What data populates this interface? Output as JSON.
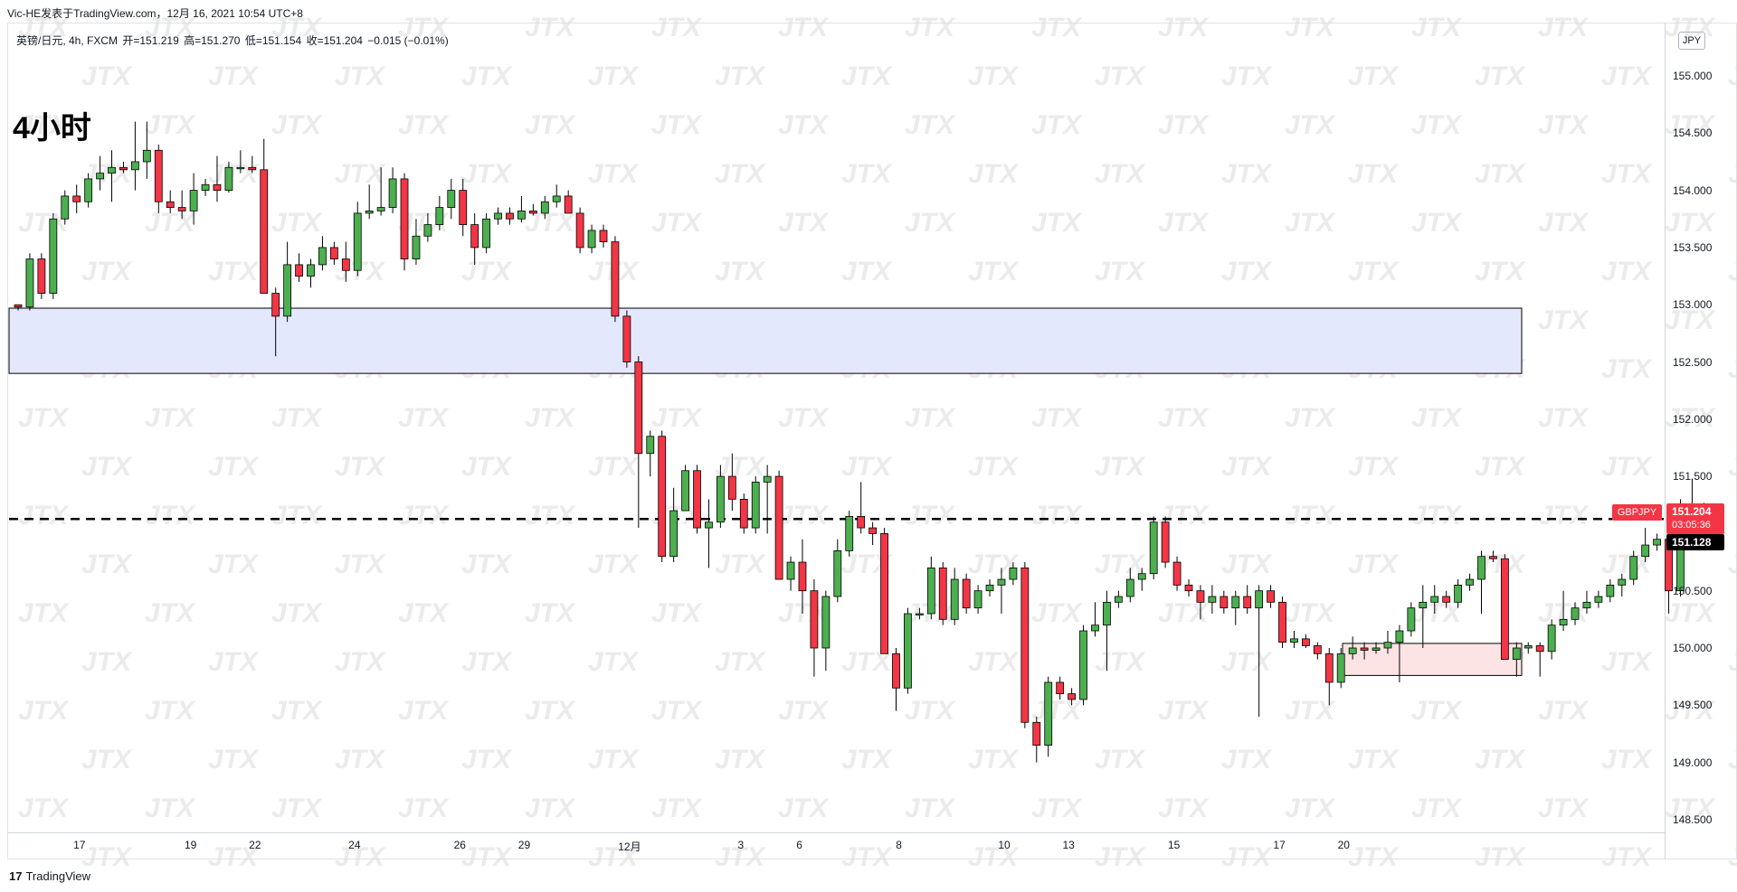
{
  "header": {
    "attribution": "Vic-HE发表于TradingView.com，12月 16, 2021 10:54 UTC+8",
    "legend": {
      "symbol": "英镑/日元, 4h, FXCM",
      "open": "开=151.219",
      "high": "高=151.270",
      "low": "低=151.154",
      "close": "收=151.204",
      "change": "−0.015 (−0.01%)"
    },
    "timeframe_label": "4小时"
  },
  "price_axis": {
    "currency": "JPY",
    "ticks": [
      "155.000",
      "154.500",
      "154.000",
      "153.500",
      "153.000",
      "152.500",
      "152.000",
      "151.500",
      "151.000",
      "150.500",
      "150.000",
      "149.500",
      "149.000",
      "148.500"
    ],
    "symbol_tag": "GBPJPY",
    "last_price": "151.204",
    "countdown": "03:05:36",
    "line_price": "151.128"
  },
  "time_axis": {
    "ticks": [
      "17",
      "19",
      "22",
      "24",
      "26",
      "29",
      "12月",
      "3",
      "6",
      "8",
      "10",
      "13",
      "15",
      "17",
      "20"
    ]
  },
  "footer": {
    "logo": "17",
    "brand": "TradingView"
  },
  "colors": {
    "up": "#4caf50",
    "down": "#f23645",
    "zone_supply": "#e3e8fd",
    "zone_demand": "#fde4e4",
    "watermark": "#dcdcdc"
  },
  "chart_data": {
    "type": "candlestick",
    "instrument": "英镑/日元",
    "interval": "4h",
    "ylim": [
      148.4,
      155.5
    ],
    "candles": [
      {
        "o": 153.0,
        "h": 153.0,
        "l": 152.95,
        "c": 152.98
      },
      {
        "o": 152.98,
        "h": 153.45,
        "l": 152.95,
        "c": 153.4
      },
      {
        "o": 153.4,
        "h": 153.45,
        "l": 153.05,
        "c": 153.1
      },
      {
        "o": 153.1,
        "h": 153.8,
        "l": 153.05,
        "c": 153.75
      },
      {
        "o": 153.75,
        "h": 154.0,
        "l": 153.7,
        "c": 153.95
      },
      {
        "o": 153.95,
        "h": 154.05,
        "l": 153.8,
        "c": 153.9
      },
      {
        "o": 153.9,
        "h": 154.15,
        "l": 153.85,
        "c": 154.1
      },
      {
        "o": 154.1,
        "h": 154.3,
        "l": 154.0,
        "c": 154.15
      },
      {
        "o": 154.15,
        "h": 154.35,
        "l": 153.9,
        "c": 154.2
      },
      {
        "o": 154.2,
        "h": 154.25,
        "l": 154.15,
        "c": 154.18
      },
      {
        "o": 154.18,
        "h": 154.6,
        "l": 154.0,
        "c": 154.25
      },
      {
        "o": 154.25,
        "h": 154.6,
        "l": 154.1,
        "c": 154.35
      },
      {
        "o": 154.35,
        "h": 154.4,
        "l": 153.8,
        "c": 153.9
      },
      {
        "o": 153.9,
        "h": 154.0,
        "l": 153.8,
        "c": 153.85
      },
      {
        "o": 153.85,
        "h": 154.0,
        "l": 153.75,
        "c": 153.82
      },
      {
        "o": 153.82,
        "h": 154.15,
        "l": 153.7,
        "c": 154.0
      },
      {
        "o": 154.0,
        "h": 154.1,
        "l": 153.95,
        "c": 154.05
      },
      {
        "o": 154.05,
        "h": 154.3,
        "l": 153.9,
        "c": 154.0
      },
      {
        "o": 154.0,
        "h": 154.25,
        "l": 153.98,
        "c": 154.2
      },
      {
        "o": 154.2,
        "h": 154.35,
        "l": 154.15,
        "c": 154.2
      },
      {
        "o": 154.2,
        "h": 154.3,
        "l": 154.15,
        "c": 154.18
      },
      {
        "o": 154.18,
        "h": 154.45,
        "l": 153.15,
        "c": 153.1
      },
      {
        "o": 153.1,
        "h": 153.15,
        "l": 152.55,
        "c": 152.9
      },
      {
        "o": 152.9,
        "h": 153.55,
        "l": 152.85,
        "c": 153.35
      },
      {
        "o": 153.35,
        "h": 153.45,
        "l": 153.2,
        "c": 153.25
      },
      {
        "o": 153.25,
        "h": 153.4,
        "l": 153.15,
        "c": 153.35
      },
      {
        "o": 153.35,
        "h": 153.6,
        "l": 153.3,
        "c": 153.5
      },
      {
        "o": 153.5,
        "h": 153.55,
        "l": 153.35,
        "c": 153.4
      },
      {
        "o": 153.4,
        "h": 153.55,
        "l": 153.2,
        "c": 153.3
      },
      {
        "o": 153.3,
        "h": 153.9,
        "l": 153.25,
        "c": 153.8
      },
      {
        "o": 153.8,
        "h": 154.05,
        "l": 153.75,
        "c": 153.82
      },
      {
        "o": 153.82,
        "h": 154.2,
        "l": 153.78,
        "c": 153.85
      },
      {
        "o": 153.85,
        "h": 154.2,
        "l": 153.8,
        "c": 154.1
      },
      {
        "o": 154.1,
        "h": 154.15,
        "l": 153.3,
        "c": 153.4
      },
      {
        "o": 153.4,
        "h": 153.75,
        "l": 153.35,
        "c": 153.6
      },
      {
        "o": 153.6,
        "h": 153.8,
        "l": 153.55,
        "c": 153.7
      },
      {
        "o": 153.7,
        "h": 153.95,
        "l": 153.65,
        "c": 153.85
      },
      {
        "o": 153.85,
        "h": 154.1,
        "l": 153.75,
        "c": 154.0
      },
      {
        "o": 154.0,
        "h": 154.1,
        "l": 153.6,
        "c": 153.7
      },
      {
        "o": 153.7,
        "h": 153.8,
        "l": 153.35,
        "c": 153.5
      },
      {
        "o": 153.5,
        "h": 153.8,
        "l": 153.45,
        "c": 153.75
      },
      {
        "o": 153.75,
        "h": 153.85,
        "l": 153.7,
        "c": 153.8
      },
      {
        "o": 153.8,
        "h": 153.85,
        "l": 153.7,
        "c": 153.75
      },
      {
        "o": 153.75,
        "h": 153.95,
        "l": 153.72,
        "c": 153.82
      },
      {
        "o": 153.82,
        "h": 153.88,
        "l": 153.78,
        "c": 153.8
      },
      {
        "o": 153.8,
        "h": 153.95,
        "l": 153.75,
        "c": 153.9
      },
      {
        "o": 153.9,
        "h": 154.05,
        "l": 153.85,
        "c": 153.95
      },
      {
        "o": 153.95,
        "h": 154.0,
        "l": 153.8,
        "c": 153.8
      },
      {
        "o": 153.8,
        "h": 153.85,
        "l": 153.45,
        "c": 153.5
      },
      {
        "o": 153.5,
        "h": 153.7,
        "l": 153.45,
        "c": 153.65
      },
      {
        "o": 153.65,
        "h": 153.7,
        "l": 153.5,
        "c": 153.55
      },
      {
        "o": 153.55,
        "h": 153.6,
        "l": 152.85,
        "c": 152.9
      },
      {
        "o": 152.9,
        "h": 152.95,
        "l": 152.45,
        "c": 152.5
      },
      {
        "o": 152.5,
        "h": 152.55,
        "l": 151.05,
        "c": 151.7
      },
      {
        "o": 151.7,
        "h": 151.9,
        "l": 151.5,
        "c": 151.85
      },
      {
        "o": 151.85,
        "h": 151.9,
        "l": 150.75,
        "c": 150.8
      },
      {
        "o": 150.8,
        "h": 151.4,
        "l": 150.75,
        "c": 151.2
      },
      {
        "o": 151.2,
        "h": 151.6,
        "l": 151.2,
        "c": 151.55
      },
      {
        "o": 151.55,
        "h": 151.6,
        "l": 151.0,
        "c": 151.05
      },
      {
        "o": 151.05,
        "h": 151.3,
        "l": 150.7,
        "c": 151.1
      },
      {
        "o": 151.1,
        "h": 151.6,
        "l": 151.05,
        "c": 151.5
      },
      {
        "o": 151.5,
        "h": 151.7,
        "l": 151.2,
        "c": 151.3
      },
      {
        "o": 151.3,
        "h": 151.35,
        "l": 151.0,
        "c": 151.05
      },
      {
        "o": 151.05,
        "h": 151.5,
        "l": 151.0,
        "c": 151.45
      },
      {
        "o": 151.45,
        "h": 151.6,
        "l": 151.0,
        "c": 151.5
      },
      {
        "o": 151.5,
        "h": 151.55,
        "l": 150.6,
        "c": 150.6
      },
      {
        "o": 150.6,
        "h": 150.8,
        "l": 150.5,
        "c": 150.75
      },
      {
        "o": 150.75,
        "h": 150.95,
        "l": 150.3,
        "c": 150.5
      },
      {
        "o": 150.5,
        "h": 150.6,
        "l": 149.75,
        "c": 150.0
      },
      {
        "o": 150.0,
        "h": 150.5,
        "l": 149.8,
        "c": 150.45
      },
      {
        "o": 150.45,
        "h": 150.95,
        "l": 150.4,
        "c": 150.85
      },
      {
        "o": 150.85,
        "h": 151.2,
        "l": 150.8,
        "c": 151.15
      },
      {
        "o": 151.15,
        "h": 151.45,
        "l": 151.0,
        "c": 151.05
      },
      {
        "o": 151.05,
        "h": 151.1,
        "l": 150.9,
        "c": 151.0
      },
      {
        "o": 151.0,
        "h": 151.05,
        "l": 149.95,
        "c": 149.95
      },
      {
        "o": 149.95,
        "h": 150.0,
        "l": 149.45,
        "c": 149.65
      },
      {
        "o": 149.65,
        "h": 150.35,
        "l": 149.6,
        "c": 150.3
      },
      {
        "o": 150.3,
        "h": 150.35,
        "l": 150.25,
        "c": 150.3
      },
      {
        "o": 150.3,
        "h": 150.8,
        "l": 150.25,
        "c": 150.7
      },
      {
        "o": 150.7,
        "h": 150.75,
        "l": 150.2,
        "c": 150.25
      },
      {
        "o": 150.25,
        "h": 150.7,
        "l": 150.2,
        "c": 150.6
      },
      {
        "o": 150.6,
        "h": 150.65,
        "l": 150.3,
        "c": 150.35
      },
      {
        "o": 150.35,
        "h": 150.55,
        "l": 150.3,
        "c": 150.5
      },
      {
        "o": 150.5,
        "h": 150.6,
        "l": 150.45,
        "c": 150.55
      },
      {
        "o": 150.55,
        "h": 150.7,
        "l": 150.3,
        "c": 150.6
      },
      {
        "o": 150.6,
        "h": 150.75,
        "l": 150.55,
        "c": 150.7
      },
      {
        "o": 150.7,
        "h": 150.75,
        "l": 149.3,
        "c": 149.35
      },
      {
        "o": 149.35,
        "h": 149.4,
        "l": 149.0,
        "c": 149.15
      },
      {
        "o": 149.15,
        "h": 149.75,
        "l": 149.05,
        "c": 149.7
      },
      {
        "o": 149.7,
        "h": 149.75,
        "l": 149.55,
        "c": 149.6
      },
      {
        "o": 149.6,
        "h": 149.65,
        "l": 149.5,
        "c": 149.55
      },
      {
        "o": 149.55,
        "h": 150.2,
        "l": 149.5,
        "c": 150.15
      },
      {
        "o": 150.15,
        "h": 150.4,
        "l": 150.1,
        "c": 150.2
      },
      {
        "o": 150.2,
        "h": 150.5,
        "l": 149.8,
        "c": 150.4
      },
      {
        "o": 150.4,
        "h": 150.5,
        "l": 150.35,
        "c": 150.45
      },
      {
        "o": 150.45,
        "h": 150.7,
        "l": 150.4,
        "c": 150.6
      },
      {
        "o": 150.6,
        "h": 150.7,
        "l": 150.5,
        "c": 150.65
      },
      {
        "o": 150.65,
        "h": 151.15,
        "l": 150.6,
        "c": 151.1
      },
      {
        "o": 151.1,
        "h": 151.15,
        "l": 150.7,
        "c": 150.75
      },
      {
        "o": 150.75,
        "h": 150.8,
        "l": 150.5,
        "c": 150.55
      },
      {
        "o": 150.55,
        "h": 150.6,
        "l": 150.45,
        "c": 150.5
      },
      {
        "o": 150.5,
        "h": 150.55,
        "l": 150.25,
        "c": 150.4
      },
      {
        "o": 150.4,
        "h": 150.55,
        "l": 150.3,
        "c": 150.45
      },
      {
        "o": 150.45,
        "h": 150.5,
        "l": 150.3,
        "c": 150.35
      },
      {
        "o": 150.35,
        "h": 150.5,
        "l": 150.2,
        "c": 150.45
      },
      {
        "o": 150.45,
        "h": 150.55,
        "l": 150.3,
        "c": 150.35
      },
      {
        "o": 150.35,
        "h": 150.55,
        "l": 149.4,
        "c": 150.5
      },
      {
        "o": 150.5,
        "h": 150.55,
        "l": 150.35,
        "c": 150.4
      },
      {
        "o": 150.4,
        "h": 150.45,
        "l": 150.0,
        "c": 150.05
      },
      {
        "o": 150.05,
        "h": 150.15,
        "l": 150.0,
        "c": 150.08
      },
      {
        "o": 150.08,
        "h": 150.12,
        "l": 150.0,
        "c": 150.02
      },
      {
        "o": 150.02,
        "h": 150.05,
        "l": 149.9,
        "c": 149.95
      },
      {
        "o": 149.95,
        "h": 150.0,
        "l": 149.5,
        "c": 149.7
      },
      {
        "o": 149.7,
        "h": 150.0,
        "l": 149.65,
        "c": 149.95
      },
      {
        "o": 149.95,
        "h": 150.1,
        "l": 149.9,
        "c": 150.0
      },
      {
        "o": 150.0,
        "h": 150.05,
        "l": 149.9,
        "c": 149.98
      },
      {
        "o": 149.98,
        "h": 150.05,
        "l": 149.95,
        "c": 150.0
      },
      {
        "o": 150.0,
        "h": 150.15,
        "l": 149.95,
        "c": 150.05
      },
      {
        "o": 150.05,
        "h": 150.2,
        "l": 149.7,
        "c": 150.15
      },
      {
        "o": 150.15,
        "h": 150.4,
        "l": 150.1,
        "c": 150.35
      },
      {
        "o": 150.35,
        "h": 150.55,
        "l": 150.0,
        "c": 150.4
      },
      {
        "o": 150.4,
        "h": 150.55,
        "l": 150.3,
        "c": 150.45
      },
      {
        "o": 150.45,
        "h": 150.5,
        "l": 150.35,
        "c": 150.4
      },
      {
        "o": 150.4,
        "h": 150.6,
        "l": 150.35,
        "c": 150.55
      },
      {
        "o": 150.55,
        "h": 150.65,
        "l": 150.5,
        "c": 150.6
      },
      {
        "o": 150.6,
        "h": 150.85,
        "l": 150.3,
        "c": 150.8
      },
      {
        "o": 150.8,
        "h": 150.85,
        "l": 150.75,
        "c": 150.78
      },
      {
        "o": 150.78,
        "h": 150.82,
        "l": 149.9,
        "c": 149.9
      },
      {
        "o": 149.9,
        "h": 150.05,
        "l": 149.75,
        "c": 150.0
      },
      {
        "o": 150.0,
        "h": 150.05,
        "l": 149.95,
        "c": 150.02
      },
      {
        "o": 150.02,
        "h": 150.05,
        "l": 149.75,
        "c": 149.97
      },
      {
        "o": 149.97,
        "h": 150.25,
        "l": 149.9,
        "c": 150.2
      },
      {
        "o": 150.2,
        "h": 150.5,
        "l": 150.15,
        "c": 150.25
      },
      {
        "o": 150.25,
        "h": 150.4,
        "l": 150.2,
        "c": 150.35
      },
      {
        "o": 150.35,
        "h": 150.5,
        "l": 150.3,
        "c": 150.4
      },
      {
        "o": 150.4,
        "h": 150.5,
        "l": 150.35,
        "c": 150.45
      },
      {
        "o": 150.45,
        "h": 150.6,
        "l": 150.4,
        "c": 150.55
      },
      {
        "o": 150.55,
        "h": 150.65,
        "l": 150.45,
        "c": 150.6
      },
      {
        "o": 150.6,
        "h": 150.85,
        "l": 150.55,
        "c": 150.8
      },
      {
        "o": 150.8,
        "h": 151.05,
        "l": 150.75,
        "c": 150.9
      },
      {
        "o": 150.9,
        "h": 151.0,
        "l": 150.85,
        "c": 150.95
      },
      {
        "o": 150.95,
        "h": 151.0,
        "l": 150.3,
        "c": 150.5
      },
      {
        "o": 150.5,
        "h": 151.3,
        "l": 150.45,
        "c": 151.2
      },
      {
        "o": 151.2,
        "h": 151.48,
        "l": 151.15,
        "c": 151.22
      },
      {
        "o": 151.219,
        "h": 151.27,
        "l": 151.154,
        "c": 151.204
      }
    ],
    "horizontal_line": 151.128,
    "zones": [
      {
        "label": "",
        "top": 152.97,
        "bottom": 152.4,
        "color": "#e3e8fd"
      },
      {
        "label": "",
        "top": 150.04,
        "bottom": 149.76,
        "color": "#fde4e4"
      }
    ],
    "xlabel": "",
    "ylabel": "",
    "grid": false
  }
}
